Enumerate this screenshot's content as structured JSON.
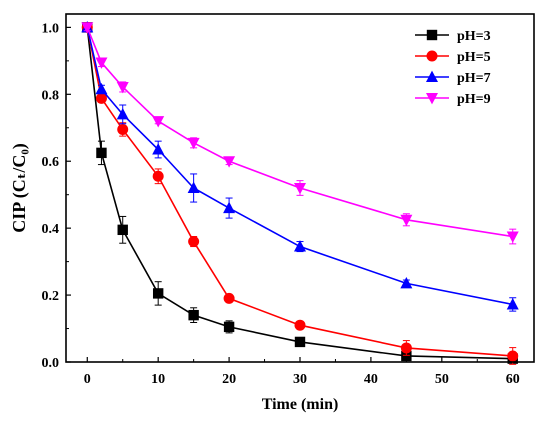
{
  "chart_data": {
    "type": "line",
    "xlabel": "Time (min)",
    "ylabel": "CIP (Cₜ/C₀)",
    "xlim": [
      -3,
      63
    ],
    "ylim": [
      0.0,
      1.04
    ],
    "x_ticks": [
      0,
      10,
      20,
      30,
      40,
      50,
      60
    ],
    "y_ticks": [
      0.0,
      0.2,
      0.4,
      0.6,
      0.8,
      1.0
    ],
    "x_tick_labels": [
      "0",
      "10",
      "20",
      "30",
      "40",
      "50",
      "60"
    ],
    "y_tick_labels": [
      "0.0",
      "0.2",
      "0.4",
      "0.6",
      "0.8",
      "1.0"
    ],
    "legend_position": "top-right",
    "grid": false,
    "x": [
      0,
      2,
      5,
      10,
      15,
      20,
      30,
      45,
      60
    ],
    "series": [
      {
        "name": "pH=3",
        "color": "#000000",
        "marker": "square",
        "values": [
          1.0,
          0.625,
          0.395,
          0.205,
          0.14,
          0.105,
          0.06,
          0.018,
          0.01
        ],
        "errors": [
          0.012,
          0.035,
          0.04,
          0.035,
          0.022,
          0.018,
          0.008,
          0.006,
          0.005
        ]
      },
      {
        "name": "pH=5",
        "color": "#ff0000",
        "marker": "circle",
        "values": [
          1.0,
          0.788,
          0.695,
          0.555,
          0.36,
          0.19,
          0.11,
          0.042,
          0.018
        ],
        "errors": [
          0.01,
          0.012,
          0.02,
          0.022,
          0.015,
          0.01,
          0.008,
          0.022,
          0.025
        ]
      },
      {
        "name": "pH=7",
        "color": "#0000ff",
        "marker": "triangle-up",
        "values": [
          1.0,
          0.815,
          0.74,
          0.635,
          0.52,
          0.46,
          0.345,
          0.235,
          0.172
        ],
        "errors": [
          0.01,
          0.012,
          0.028,
          0.025,
          0.042,
          0.03,
          0.015,
          0.01,
          0.02
        ]
      },
      {
        "name": "pH=9",
        "color": "#ff00ff",
        "marker": "triangle-down",
        "values": [
          1.0,
          0.895,
          0.822,
          0.72,
          0.655,
          0.6,
          0.52,
          0.425,
          0.375
        ],
        "errors": [
          0.01,
          0.012,
          0.015,
          0.008,
          0.015,
          0.01,
          0.022,
          0.018,
          0.022
        ]
      }
    ]
  }
}
